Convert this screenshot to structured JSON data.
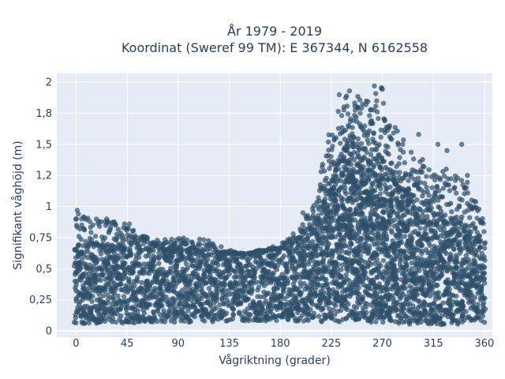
{
  "chart_data": {
    "type": "scatter",
    "title_line1": "År 1979 - 2019",
    "title_line2": "Koordinat (Sweref 99 TM): E 367344, N 6162558",
    "xlabel": "Vågriktning (grader)",
    "ylabel": "Signifikant våghöjd (m)",
    "xlim": [
      -17,
      367
    ],
    "ylim": [
      -0.05,
      2.07
    ],
    "xticks": [
      0,
      45,
      90,
      135,
      180,
      225,
      270,
      315,
      360
    ],
    "xtick_labels": [
      "0",
      "45",
      "90",
      "135",
      "180",
      "225",
      "270",
      "315",
      "360"
    ],
    "yticks": [
      0,
      0.25,
      0.5,
      0.75,
      1,
      1.25,
      1.5,
      1.75,
      2
    ],
    "ytick_labels": [
      "0",
      "0,25",
      "0,5",
      "0,75",
      "1",
      "1,2",
      "1,5",
      "1,8",
      "2"
    ],
    "grid": true,
    "marker_color": "#2f5069",
    "background_color": "#e5ecf6",
    "envelope": {
      "direction": [
        0,
        15,
        30,
        45,
        60,
        75,
        90,
        105,
        120,
        135,
        150,
        165,
        180,
        195,
        210,
        225,
        240,
        255,
        270,
        285,
        300,
        315,
        330,
        345,
        360
      ],
      "dense_min": [
        0.06,
        0.06,
        0.06,
        0.06,
        0.07,
        0.07,
        0.07,
        0.07,
        0.07,
        0.08,
        0.08,
        0.08,
        0.08,
        0.08,
        0.07,
        0.07,
        0.07,
        0.07,
        0.07,
        0.06,
        0.05,
        0.05,
        0.05,
        0.06,
        0.06
      ],
      "dense_max": [
        0.68,
        0.68,
        0.68,
        0.66,
        0.65,
        0.64,
        0.64,
        0.64,
        0.63,
        0.62,
        0.62,
        0.64,
        0.66,
        0.72,
        0.85,
        1.2,
        1.52,
        1.45,
        1.3,
        1.15,
        1.05,
        0.95,
        0.85,
        0.8,
        0.7
      ],
      "outer_max": [
        0.98,
        0.92,
        0.88,
        0.86,
        0.78,
        0.74,
        0.75,
        0.74,
        0.73,
        0.65,
        0.62,
        0.66,
        0.7,
        0.8,
        1.05,
        1.65,
        1.95,
        1.85,
        1.97,
        1.65,
        1.4,
        1.35,
        1.3,
        1.2,
        0.9
      ]
    },
    "highlighted_points": [
      {
        "x": 1,
        "y": 0.97
      },
      {
        "x": 2,
        "y": 0.94
      },
      {
        "x": 27,
        "y": 0.9
      },
      {
        "x": 47,
        "y": 0.86
      },
      {
        "x": 232,
        "y": 1.9
      },
      {
        "x": 241,
        "y": 1.93
      },
      {
        "x": 260,
        "y": 1.78
      },
      {
        "x": 263,
        "y": 1.97
      },
      {
        "x": 265,
        "y": 1.85
      },
      {
        "x": 271,
        "y": 1.83
      },
      {
        "x": 288,
        "y": 1.5
      },
      {
        "x": 302,
        "y": 1.58
      },
      {
        "x": 319,
        "y": 1.5
      },
      {
        "x": 327,
        "y": 1.45
      },
      {
        "x": 340,
        "y": 1.5
      },
      {
        "x": 345,
        "y": 1.25
      },
      {
        "x": 355,
        "y": 0.98
      },
      {
        "x": 216,
        "y": 1.28
      },
      {
        "x": 200,
        "y": 0.95
      },
      {
        "x": 12,
        "y": 0.88
      }
    ],
    "scatter_density": 6
  }
}
